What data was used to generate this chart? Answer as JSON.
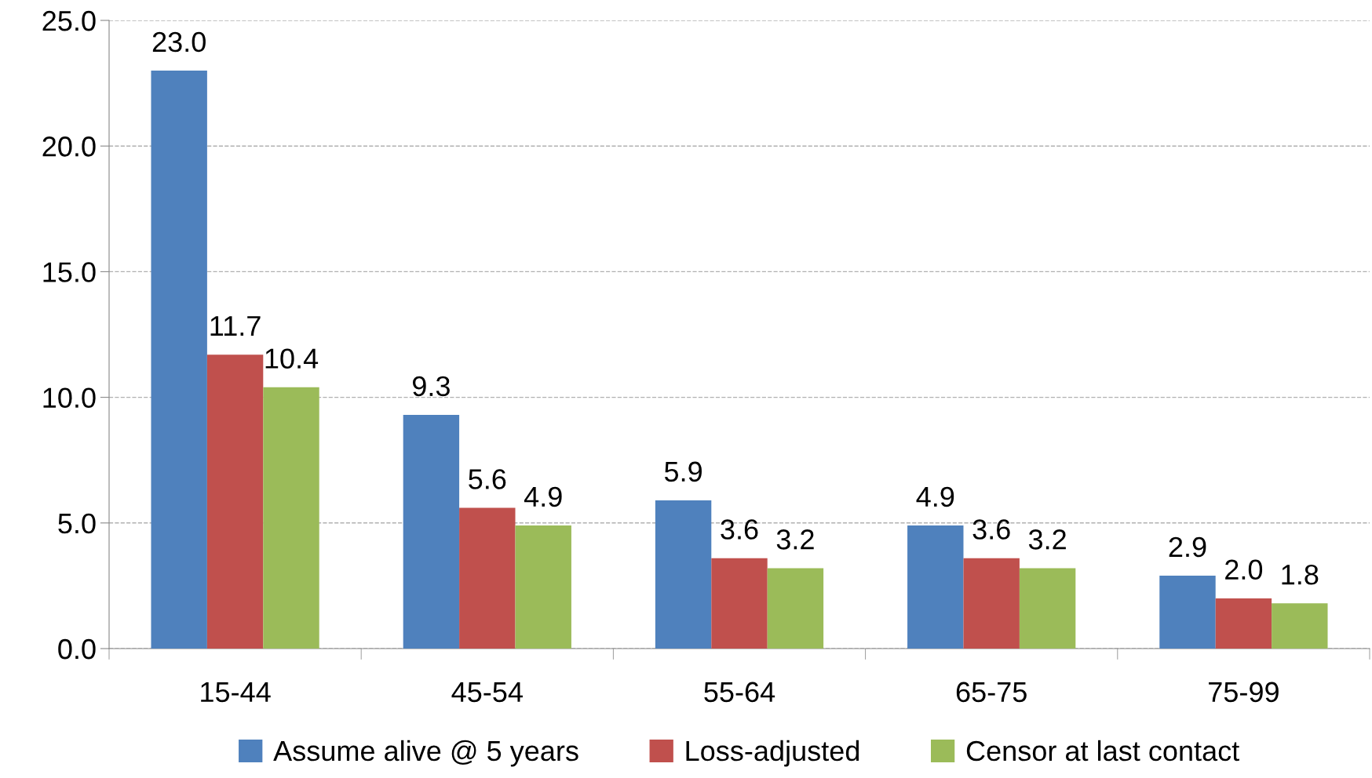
{
  "chart_data": {
    "type": "bar",
    "categories": [
      "15-44",
      "45-54",
      "55-64",
      "65-75",
      "75-99"
    ],
    "series": [
      {
        "name": "Assume alive @ 5 years",
        "color": "#4f81bd",
        "values": [
          23,
          9.3,
          5.9,
          4.9,
          2.9
        ],
        "value_labels": [
          "23.0",
          "9.3",
          "5.9",
          "4.9",
          "2.9"
        ]
      },
      {
        "name": "Loss-adjusted",
        "color": "#c0504d",
        "values": [
          11.7,
          5.6,
          3.6,
          3.6,
          2
        ],
        "value_labels": [
          "11.7",
          "5.6",
          "3.6",
          "3.6",
          "2.0"
        ]
      },
      {
        "name": "Censor at last contact",
        "color": "#9bbb59",
        "values": [
          10.4,
          4.9,
          3.2,
          3.2,
          1.8
        ],
        "value_labels": [
          "10.4",
          "4.9",
          "3.2",
          "3.2",
          "1.8"
        ]
      }
    ],
    "ylim": [
      0,
      25
    ],
    "yticks": [
      {
        "value": 0,
        "label": "0.0"
      },
      {
        "value": 5,
        "label": "5.0"
      },
      {
        "value": 10,
        "label": "10.0"
      },
      {
        "value": 15,
        "label": "15.0"
      },
      {
        "value": 20,
        "label": "20.0"
      },
      {
        "value": 25,
        "label": "25.0"
      }
    ],
    "grid": "y",
    "legend": "bottom"
  }
}
